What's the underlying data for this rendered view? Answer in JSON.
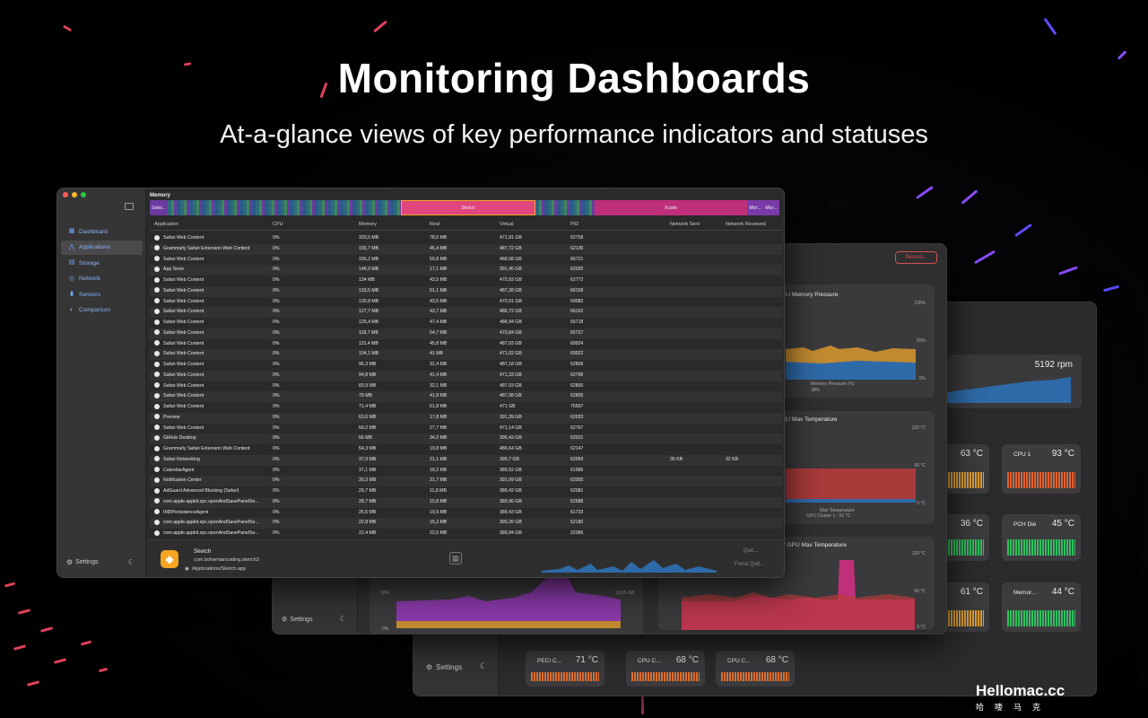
{
  "hero": {
    "title": "Monitoring Dashboards",
    "subtitle": "At-a-glance views of key performance indicators and statuses"
  },
  "main_window": {
    "sidebar": {
      "items": [
        {
          "label": "Dashboard",
          "icon": "dashboard-icon"
        },
        {
          "label": "Applications",
          "icon": "applications-icon",
          "selected": true
        },
        {
          "label": "Storage",
          "icon": "storage-icon"
        },
        {
          "label": "Network",
          "icon": "network-icon"
        },
        {
          "label": "Sensors",
          "icon": "sensors-icon"
        },
        {
          "label": "Comparison",
          "icon": "comparison-icon"
        }
      ],
      "settings_label": "Settings"
    },
    "memory": {
      "title": "Memory",
      "segments": [
        {
          "label": "Safar...",
          "color": "#6b3aa0"
        },
        {
          "label": "",
          "color": "#2f6a7a"
        },
        {
          "label": "Sketch",
          "color": "#e0457b",
          "highlight": true
        },
        {
          "label": "",
          "color": "#2f6a7a"
        },
        {
          "label": "Xcode",
          "color": "#c0307a"
        },
        {
          "label": "Micr...",
          "color": "#7a3aa8"
        },
        {
          "label": "Micr...",
          "color": "#7a3aa8"
        }
      ]
    },
    "table": {
      "columns": [
        "Application",
        "CPU",
        "Memory",
        "Real",
        "Virtual",
        "PID",
        "Network Sent",
        "Network Recieved"
      ],
      "rows": [
        [
          "Safari Web Content",
          "0%",
          "329,5 MB",
          "78,6 MB",
          "471,91 GB",
          "62758",
          "",
          ""
        ],
        [
          "Grammarly Safari Extension Web Content",
          "0%",
          "155,7 MB",
          "45,4 MB",
          "487,72 GB",
          "62136",
          "",
          ""
        ],
        [
          "Safari Web Content",
          "0%",
          "155,2 MB",
          "59,8 MB",
          "468,08 GB",
          "66721",
          "",
          ""
        ],
        [
          "App Store",
          "0%",
          "146,9 MB",
          "17,1 MB",
          "391,45 GB",
          "62020",
          "",
          ""
        ],
        [
          "Safari Web Content",
          "0%",
          "134 MB",
          "43,5 MB",
          "470,93 GB",
          "62772",
          "",
          ""
        ],
        [
          "Safari Web Content",
          "0%",
          "133,5 MB",
          "51,1 MB",
          "487,28 GB",
          "66158",
          "",
          ""
        ],
        [
          "Safari Web Content",
          "0%",
          "130,8 MB",
          "43,5 MB",
          "470,91 GB",
          "69082",
          "",
          ""
        ],
        [
          "Safari Web Content",
          "0%",
          "127,7 MB",
          "43,7 MB",
          "486,72 GB",
          "66162",
          "",
          ""
        ],
        [
          "Safari Web Content",
          "0%",
          "125,4 MB",
          "47,4 MB",
          "486,94 GB",
          "65718",
          "",
          ""
        ],
        [
          "Safari Web Content",
          "0%",
          "118,7 MB",
          "54,7 MB",
          "470,84 GB",
          "65727",
          "",
          ""
        ],
        [
          "Safari Web Content",
          "0%",
          "115,4 MB",
          "45,8 MB",
          "487,03 GB",
          "69924",
          "",
          ""
        ],
        [
          "Safari Web Content",
          "0%",
          "104,1 MB",
          "41 MB",
          "471,02 GB",
          "69922",
          "",
          ""
        ],
        [
          "Safari Web Content",
          "0%",
          "96,3 MB",
          "31,4 MB",
          "487,18 GB",
          "62809",
          "",
          ""
        ],
        [
          "Safari Web Content",
          "0%",
          "94,8 MB",
          "41,4 MB",
          "471,33 GB",
          "62796",
          "",
          ""
        ],
        [
          "Safari Web Content",
          "0%",
          "83,9 MB",
          "32,1 MB",
          "487,03 GB",
          "62800",
          "",
          ""
        ],
        [
          "Safari Web Content",
          "0%",
          "78 MB",
          "41,8 MB",
          "487,08 GB",
          "62805",
          "",
          ""
        ],
        [
          "Safari Web Content",
          "0%",
          "71,4 MB",
          "61,8 MB",
          "471 GB",
          "75597",
          "",
          ""
        ],
        [
          "Preview",
          "0%",
          "63,6 MB",
          "17,8 MB",
          "391,39 GB",
          "62033",
          "",
          ""
        ],
        [
          "Safari Web Content",
          "0%",
          "59,2 MB",
          "27,7 MB",
          "471,14 GB",
          "62767",
          "",
          ""
        ],
        [
          "GitHub Desktop",
          "0%",
          "56 MB",
          "34,2 MB",
          "395,43 GB",
          "62031",
          "",
          ""
        ],
        [
          "Grammarly Safari Extension Web Content",
          "0%",
          "54,3 MB",
          "19,8 MB",
          "486,64 GB",
          "62147",
          "",
          ""
        ],
        [
          "Safari Networking",
          "0%",
          "37,9 MB",
          "21,1 MB",
          "390,7 GB",
          "62069",
          "35 KB",
          "32 KB"
        ],
        [
          "CalendarAgent",
          "0%",
          "37,1 MB",
          "18,2 MB",
          "389,52 GB",
          "61986",
          "",
          ""
        ],
        [
          "Notification Center",
          "0%",
          "30,3 MB",
          "21,7 MB",
          "391,09 GB",
          "62005",
          "",
          ""
        ],
        [
          "AdGuard Advanced Blocking (Safari)",
          "0%",
          "29,7 MB",
          "11,8 MB",
          "389,42 GB",
          "62081",
          "",
          ""
        ],
        [
          "com.apple.appkit.xpc.openAndSavePanelSe...",
          "0%",
          "28,7 MB",
          "15,8 MB",
          "389,96 GB",
          "62588",
          "",
          ""
        ],
        [
          "IMDPersistenceAgent",
          "0%",
          "25,5 MB",
          "19,9 MB",
          "389,43 GB",
          "61733",
          "",
          ""
        ],
        [
          "com.apple.appkit.xpc.openAndSavePanelSe...",
          "0%",
          "22,8 MB",
          "15,2 MB",
          "390,26 GB",
          "62180",
          "",
          ""
        ],
        [
          "com.apple.appkit.xpc.openAndSavePanelSe...",
          "0%",
          "22,4 MB",
          "22,5 MB",
          "389,94 GB",
          "22386",
          "",
          ""
        ]
      ]
    },
    "footer": {
      "app_name": "Sketch",
      "bundle_id": "com.bohemiancoding.sketch3",
      "path": "/Applications/Sketch.app",
      "quit_label": "Quit...",
      "force_quit_label": "Force Quit..."
    }
  },
  "back_window_1": {
    "record_label": "Record...",
    "panels": [
      {
        "title": "n / Memory Pressure",
        "legend": "Memory Pressure (%)",
        "legend_value": "38%",
        "y_labels": [
          "100%",
          "50%",
          "0%"
        ]
      },
      {
        "title": "d / Max Temperature",
        "legend": "Max Temperature",
        "legend_sub": "GPU Cluster 1 - 61 °C",
        "y_labels": [
          "120 °C",
          "60 °C",
          "0 °C"
        ]
      },
      {
        "title": "/ GPU Max Temperature",
        "y_labels": [
          "120 °C",
          "60 °C",
          "0 °C"
        ]
      }
    ],
    "bottom_panel_labels": [
      "50%",
      "0%",
      "13,65 GB"
    ],
    "settings_label": "Settings"
  },
  "back_window_2": {
    "fan_value": "5192 rpm",
    "tiles": [
      {
        "name": "",
        "value": "63 °C",
        "color": "#e0a030"
      },
      {
        "name": "CPU 1",
        "value": "93 °C",
        "color": "#e06030"
      },
      {
        "name": "",
        "value": "36 °C",
        "color": "#30c060"
      },
      {
        "name": "PCH Die",
        "value": "45 °C",
        "color": "#30c060"
      },
      {
        "name": "",
        "value": "61 °C",
        "color": "#e0a030"
      },
      {
        "name": "Memor...",
        "value": "44 °C",
        "color": "#30c060"
      },
      {
        "name": "PECI C...",
        "value": "71 °C",
        "color": "#e07030"
      },
      {
        "name": "CPU C...",
        "value": "68 °C",
        "color": "#e07030"
      },
      {
        "name": "CPU C...",
        "value": "68 °C",
        "color": "#e07030"
      }
    ],
    "settings_label": "Settings"
  },
  "watermark": {
    "brand": "Hellomac.cc",
    "sub": "哈喽马克"
  }
}
